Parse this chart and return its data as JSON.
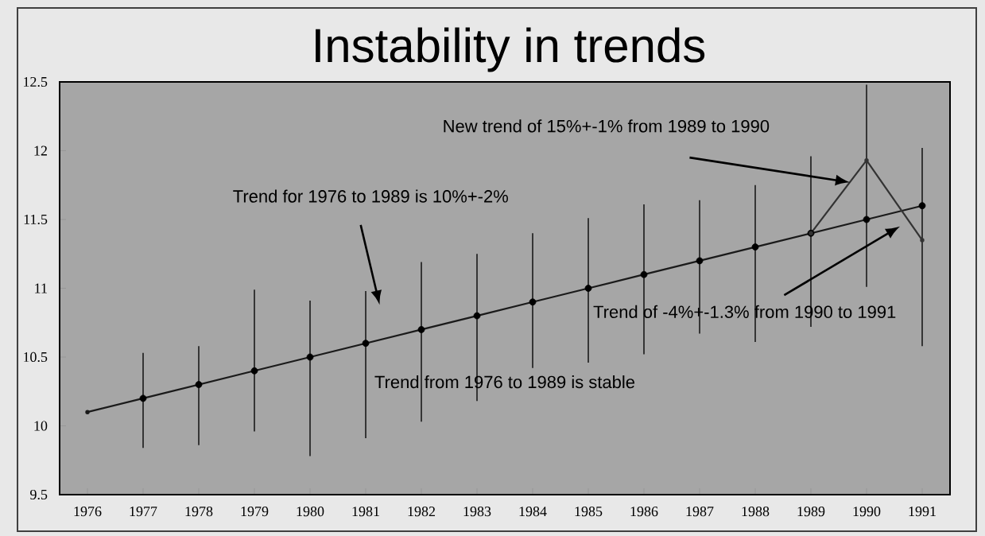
{
  "chart_data": {
    "type": "line",
    "title": "Instability in trends",
    "x": [
      1976,
      1977,
      1978,
      1979,
      1980,
      1981,
      1982,
      1983,
      1984,
      1985,
      1986,
      1987,
      1988,
      1989,
      1990,
      1991
    ],
    "xlim": [
      1975.5,
      1991.5
    ],
    "xticks": [
      1976,
      1977,
      1978,
      1979,
      1980,
      1981,
      1982,
      1983,
      1984,
      1985,
      1986,
      1987,
      1988,
      1989,
      1990,
      1991
    ],
    "ylim": [
      9.5,
      12.5
    ],
    "yticks": [
      9.5,
      10,
      10.5,
      11,
      11.5,
      12,
      12.5
    ],
    "marker": "circle",
    "series": [
      {
        "color": "#1a1a1a",
        "values": [
          10.1,
          10.2,
          10.3,
          10.4,
          10.5,
          10.6,
          10.7,
          10.8,
          10.9,
          11.0,
          11.1,
          11.2,
          11.3,
          11.4,
          11.5,
          11.6
        ],
        "errors": [
          null,
          [
            9.84,
            10.53
          ],
          [
            9.86,
            10.58
          ],
          [
            9.96,
            10.99
          ],
          [
            9.78,
            10.91
          ],
          [
            9.91,
            10.98
          ],
          [
            10.03,
            11.19
          ],
          [
            10.18,
            11.25
          ],
          [
            10.42,
            11.4
          ],
          [
            10.46,
            11.51
          ],
          [
            10.52,
            11.61
          ],
          [
            10.67,
            11.64
          ],
          [
            10.61,
            11.75
          ],
          [
            10.72,
            11.96
          ],
          [
            11.01,
            12.48
          ],
          [
            10.58,
            12.02
          ]
        ]
      },
      {
        "color": "#333333",
        "x": [
          1989,
          1990,
          1991
        ],
        "values": [
          11.4,
          11.93,
          11.35
        ]
      }
    ],
    "annotations": [
      "New trend of 15%+-1% from 1989 to 1990",
      "Trend for 1976 to 1989 is 10%+-2%",
      "Trend of -4%+-1.3% from 1990 to 1991",
      "Trend from 1976 to 1989 is stable"
    ]
  }
}
